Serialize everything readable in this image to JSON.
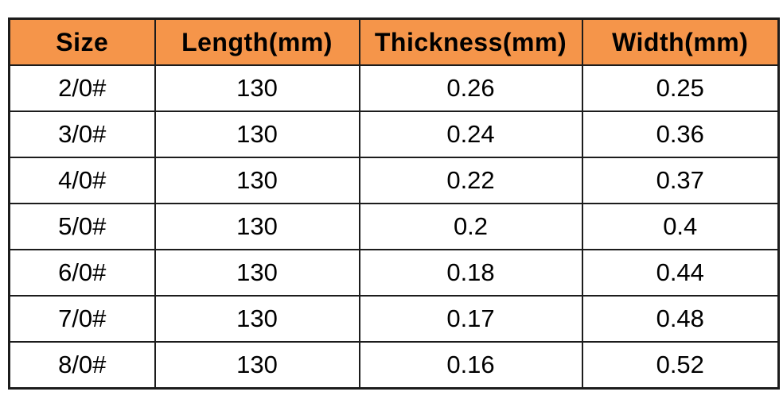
{
  "colors": {
    "header_bg": "#F5954A",
    "border": "#1C1C1C",
    "text": "#000000",
    "page_bg": "#FFFFFF"
  },
  "table": {
    "columns": [
      "Size",
      "Length(mm)",
      "Thickness(mm)",
      "Width(mm)"
    ],
    "rows": [
      [
        "2/0#",
        "130",
        "0.26",
        "0.25"
      ],
      [
        "3/0#",
        "130",
        "0.24",
        "0.36"
      ],
      [
        "4/0#",
        "130",
        "0.22",
        "0.37"
      ],
      [
        "5/0#",
        "130",
        "0.2",
        "0.4"
      ],
      [
        "6/0#",
        "130",
        "0.18",
        "0.44"
      ],
      [
        "7/0#",
        "130",
        "0.17",
        "0.48"
      ],
      [
        "8/0#",
        "130",
        "0.16",
        "0.52"
      ]
    ]
  },
  "chart_data": {
    "type": "table",
    "title": "",
    "columns": [
      "Size",
      "Length(mm)",
      "Thickness(mm)",
      "Width(mm)"
    ],
    "rows": [
      {
        "size": "2/0#",
        "length_mm": 130,
        "thickness_mm": 0.26,
        "width_mm": 0.25
      },
      {
        "size": "3/0#",
        "length_mm": 130,
        "thickness_mm": 0.24,
        "width_mm": 0.36
      },
      {
        "size": "4/0#",
        "length_mm": 130,
        "thickness_mm": 0.22,
        "width_mm": 0.37
      },
      {
        "size": "5/0#",
        "length_mm": 130,
        "thickness_mm": 0.2,
        "width_mm": 0.4
      },
      {
        "size": "6/0#",
        "length_mm": 130,
        "thickness_mm": 0.18,
        "width_mm": 0.44
      },
      {
        "size": "7/0#",
        "length_mm": 130,
        "thickness_mm": 0.17,
        "width_mm": 0.48
      },
      {
        "size": "8/0#",
        "length_mm": 130,
        "thickness_mm": 0.16,
        "width_mm": 0.52
      }
    ]
  }
}
